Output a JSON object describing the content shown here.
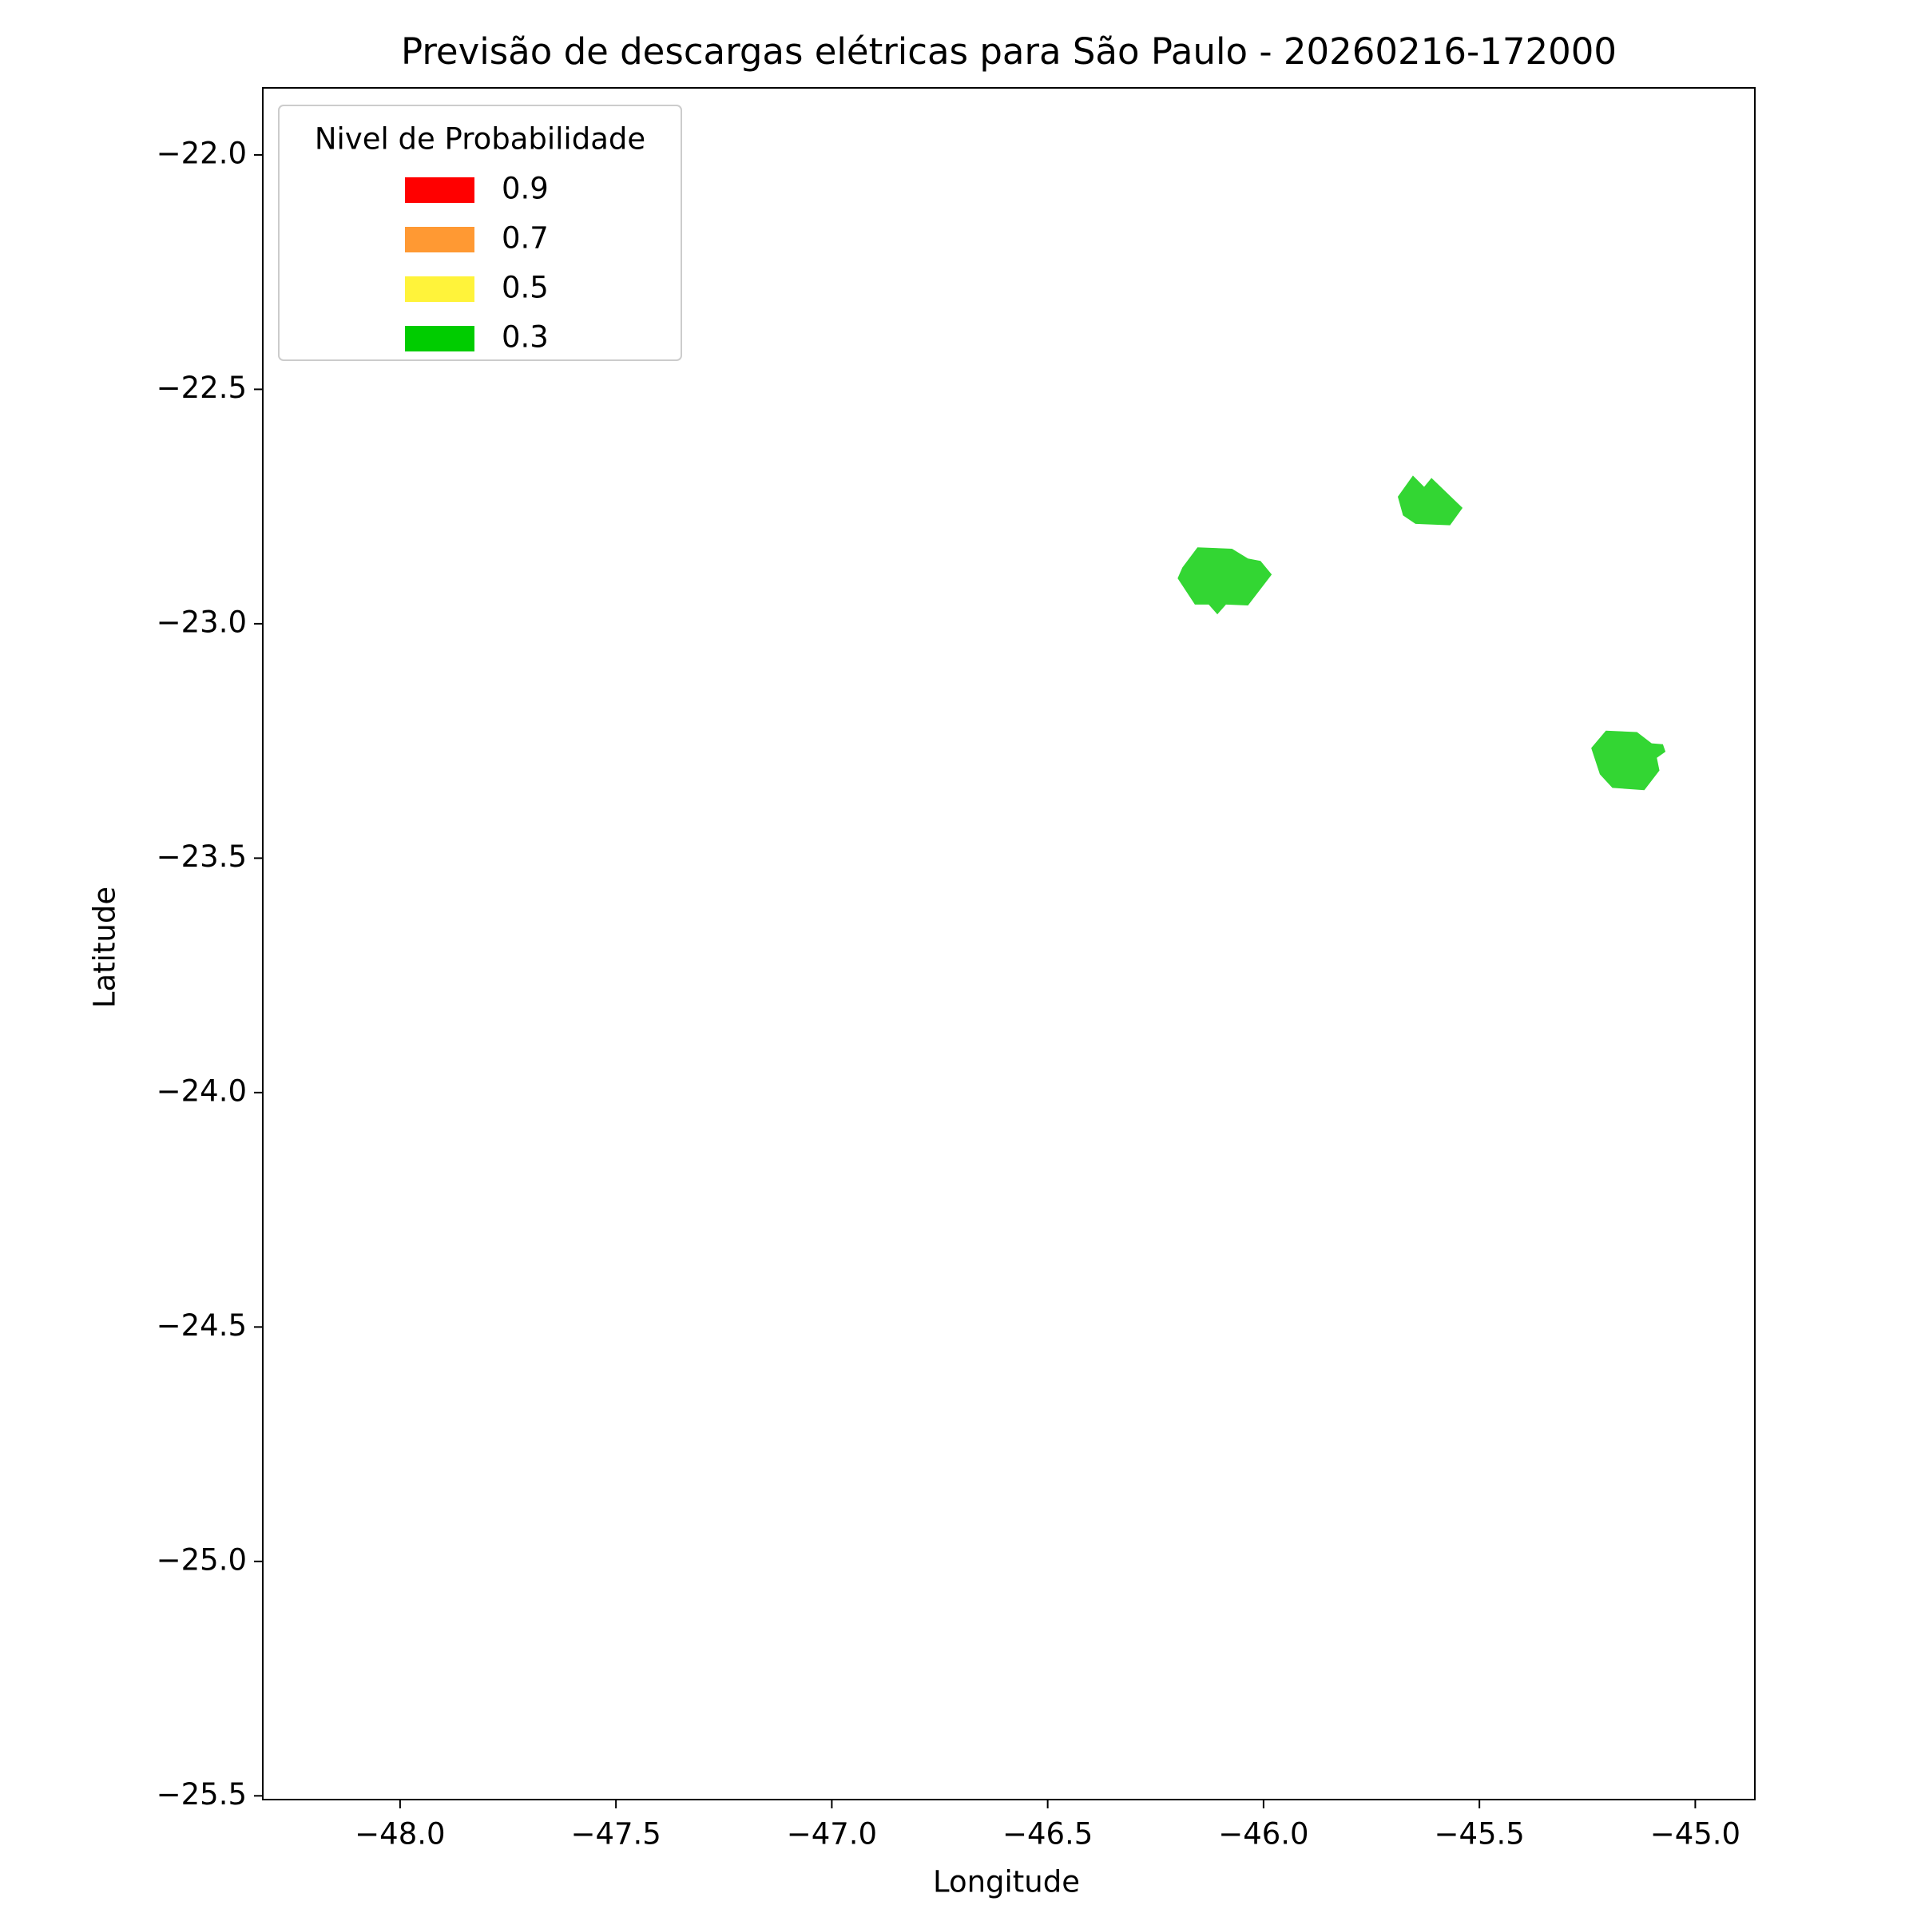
{
  "chart_data": {
    "type": "map",
    "title": "Previsão de descargas elétricas para São Paulo - 20260216-172000",
    "x_label": "Longitude",
    "y_label": "Latitude",
    "xlim": [
      -48.318,
      -44.862
    ],
    "ylim": [
      -25.508,
      -21.857
    ],
    "xticks": [
      {
        "value": -48,
        "label": "−48.0"
      },
      {
        "value": -47.5,
        "label": "−47.5"
      },
      {
        "value": -47,
        "label": "−47.0"
      },
      {
        "value": -46.5,
        "label": "−46.5"
      },
      {
        "value": -46,
        "label": "−46.0"
      },
      {
        "value": -45.5,
        "label": "−45.5"
      },
      {
        "value": -45,
        "label": "−45.0"
      }
    ],
    "yticks": [
      {
        "value": -22,
        "label": "−22.0"
      },
      {
        "value": -22.5,
        "label": "−22.5"
      },
      {
        "value": -23,
        "label": "−23.0"
      },
      {
        "value": -23.5,
        "label": "−23.5"
      },
      {
        "value": -24,
        "label": "−24.0"
      },
      {
        "value": -24.5,
        "label": "−24.5"
      },
      {
        "value": -25,
        "label": "−25.0"
      },
      {
        "value": -25.5,
        "label": "−25.5"
      }
    ],
    "legend": {
      "title": "Nivel de Probabilidade",
      "position": "upper left",
      "entries": [
        {
          "label": "0.9",
          "color": "#ff0000"
        },
        {
          "label": "0.7",
          "color": "#ff9933"
        },
        {
          "label": "0.5",
          "color": "#fff33a"
        },
        {
          "label": "0.3",
          "color": "#00cc00"
        }
      ]
    },
    "polygons": [
      {
        "color": "#33d633",
        "x": [
          -46.153,
          -46.073,
          -46.036,
          -46.007,
          -45.981,
          -46.036,
          -46.087,
          -46.107,
          -46.127,
          -46.159,
          -46.199,
          -46.188
        ],
        "y": [
          -22.837,
          -22.84,
          -22.861,
          -22.866,
          -22.895,
          -22.961,
          -22.959,
          -22.98,
          -22.959,
          -22.959,
          -22.903,
          -22.88
        ]
      },
      {
        "color": "#33d633",
        "x": [
          -45.654,
          -45.628,
          -45.611,
          -45.539,
          -45.568,
          -45.648,
          -45.677,
          -45.689
        ],
        "y": [
          -22.684,
          -22.708,
          -22.689,
          -22.753,
          -22.79,
          -22.787,
          -22.769,
          -22.729
        ]
      },
      {
        "color": "#33d633",
        "x": [
          -45.207,
          -45.135,
          -45.101,
          -45.075,
          -45.069,
          -45.089,
          -45.083,
          -45.118,
          -45.192,
          -45.221,
          -45.241
        ],
        "y": [
          -23.228,
          -23.231,
          -23.255,
          -23.257,
          -23.273,
          -23.286,
          -23.313,
          -23.355,
          -23.35,
          -23.321,
          -23.265
        ]
      }
    ]
  }
}
